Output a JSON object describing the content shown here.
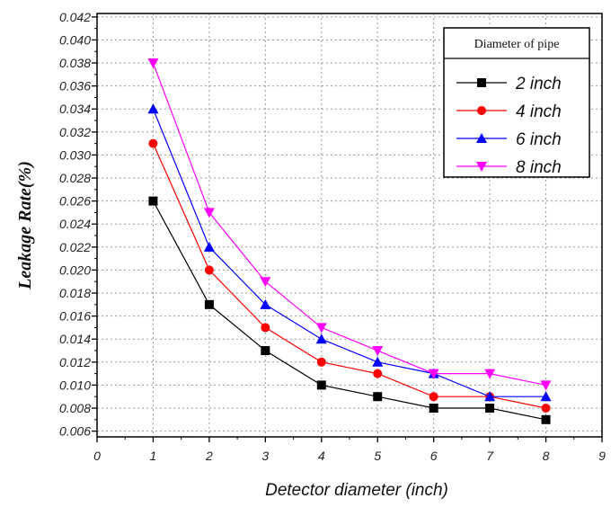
{
  "chart_data": {
    "type": "line",
    "xlabel": "Detector diameter (inch)",
    "ylabel": "Leakage Rate(%)",
    "xlim": [
      0,
      9
    ],
    "ylim": [
      0.0055,
      0.0423
    ],
    "x_ticks": [
      0,
      1,
      2,
      3,
      4,
      5,
      6,
      7,
      8,
      9
    ],
    "y_ticks": [
      0.006,
      0.008,
      0.01,
      0.012,
      0.014,
      0.016,
      0.018,
      0.02,
      0.022,
      0.024,
      0.026,
      0.028,
      0.03,
      0.032,
      0.034,
      0.036,
      0.038,
      0.04,
      0.042
    ],
    "x_tick_labels": [
      "0",
      "1",
      "2",
      "3",
      "4",
      "5",
      "6",
      "7",
      "8",
      "9"
    ],
    "y_tick_labels": [
      "0.006",
      "0.008",
      "0.010",
      "0.012",
      "0.014",
      "0.016",
      "0.018",
      "0.020",
      "0.022",
      "0.024",
      "0.026",
      "0.028",
      "0.030",
      "0.032",
      "0.034",
      "0.036",
      "0.038",
      "0.040",
      "0.042"
    ],
    "grid": true,
    "legend": {
      "title": "Diameter of pipe",
      "position": "top-right"
    },
    "x": [
      1,
      2,
      3,
      4,
      5,
      6,
      7,
      8
    ],
    "series": [
      {
        "name": "2 inch",
        "color": "#000000",
        "marker": "square",
        "values": [
          0.026,
          0.017,
          0.013,
          0.01,
          0.009,
          0.008,
          0.008,
          0.007
        ]
      },
      {
        "name": "4 inch",
        "color": "#ff0000",
        "marker": "circle",
        "values": [
          0.031,
          0.02,
          0.015,
          0.012,
          0.011,
          0.009,
          0.009,
          0.008
        ]
      },
      {
        "name": "6 inch",
        "color": "#0000ff",
        "marker": "triangle-up",
        "values": [
          0.034,
          0.022,
          0.017,
          0.014,
          0.012,
          0.011,
          0.009,
          0.009
        ]
      },
      {
        "name": "8 inch",
        "color": "#ff00ff",
        "marker": "triangle-down",
        "values": [
          0.038,
          0.025,
          0.019,
          0.015,
          0.013,
          0.011,
          0.011,
          0.01
        ]
      }
    ]
  }
}
